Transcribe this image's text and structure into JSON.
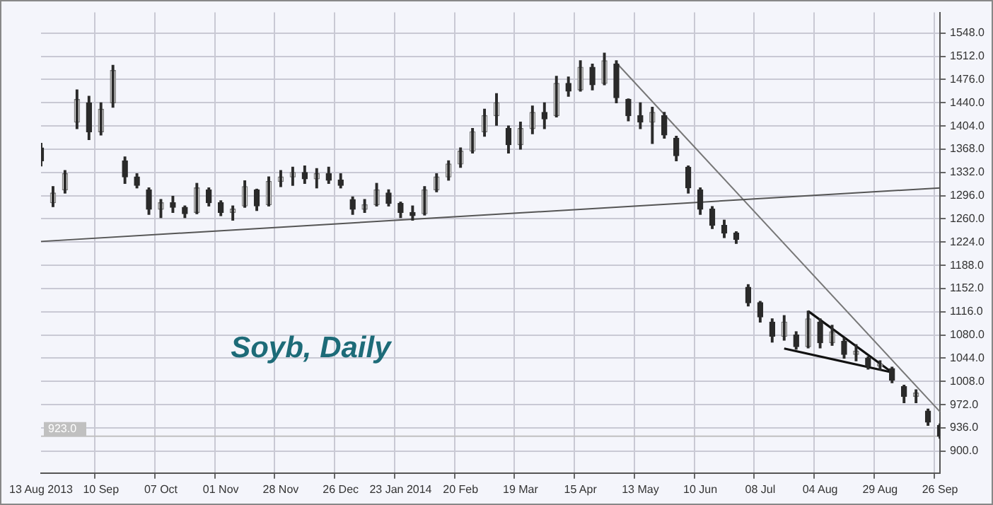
{
  "chart_data": {
    "type": "candlestick",
    "title": "Soyb, Daily",
    "categories": [
      "13 Aug 2013",
      null,
      null,
      null,
      null,
      "10 Sep",
      null,
      null,
      null,
      null,
      "07 Oct",
      null,
      null,
      null,
      null,
      "01 Nov",
      null,
      null,
      null,
      null,
      "28 Nov",
      null,
      null,
      null,
      null,
      "26 Dec",
      null,
      null,
      null,
      null,
      "23 Jan 2014",
      null,
      null,
      null,
      null,
      "20 Feb",
      null,
      null,
      null,
      null,
      "19 Mar",
      null,
      null,
      null,
      null,
      "15 Apr",
      null,
      null,
      null,
      null,
      "13 May",
      null,
      null,
      null,
      null,
      "10 Jun",
      null,
      null,
      null,
      null,
      "08 Jul",
      null,
      null,
      null,
      null,
      "04 Aug",
      null,
      null,
      null,
      null,
      "29 Aug",
      null,
      null,
      null,
      null,
      "26 Sep"
    ],
    "ohlc": [
      [
        1370,
        1377,
        1342,
        1350
      ],
      [
        1285,
        1310,
        1279,
        1300
      ],
      [
        1305,
        1335,
        1300,
        1330
      ],
      [
        1410,
        1460,
        1400,
        1445
      ],
      [
        1440,
        1450,
        1383,
        1395
      ],
      [
        1395,
        1440,
        1390,
        1430
      ],
      [
        1440,
        1498,
        1433,
        1490
      ],
      [
        1350,
        1356,
        1315,
        1325
      ],
      [
        1325,
        1330,
        1308,
        1312
      ],
      [
        1305,
        1308,
        1267,
        1275
      ],
      [
        1275,
        1290,
        1262,
        1285
      ],
      [
        1285,
        1295,
        1270,
        1278
      ],
      [
        1278,
        1280,
        1262,
        1268
      ],
      [
        1270,
        1315,
        1268,
        1308
      ],
      [
        1305,
        1308,
        1280,
        1285
      ],
      [
        1285,
        1288,
        1265,
        1270
      ],
      [
        1270,
        1280,
        1258,
        1275
      ],
      [
        1280,
        1319,
        1278,
        1310
      ],
      [
        1305,
        1306,
        1273,
        1280
      ],
      [
        1282,
        1325,
        1280,
        1318
      ],
      [
        1318,
        1335,
        1310,
        1325
      ],
      [
        1325,
        1340,
        1312,
        1332
      ],
      [
        1332,
        1342,
        1315,
        1322
      ],
      [
        1322,
        1338,
        1308,
        1330
      ],
      [
        1330,
        1340,
        1315,
        1320
      ],
      [
        1320,
        1330,
        1308,
        1312
      ],
      [
        1290,
        1294,
        1267,
        1275
      ],
      [
        1275,
        1290,
        1270,
        1282
      ],
      [
        1282,
        1315,
        1280,
        1305
      ],
      [
        1300,
        1305,
        1280,
        1284
      ],
      [
        1284,
        1286,
        1262,
        1270
      ],
      [
        1270,
        1280,
        1258,
        1265
      ],
      [
        1268,
        1310,
        1266,
        1305
      ],
      [
        1305,
        1330,
        1302,
        1325
      ],
      [
        1325,
        1350,
        1320,
        1345
      ],
      [
        1345,
        1370,
        1340,
        1365
      ],
      [
        1365,
        1400,
        1362,
        1395
      ],
      [
        1395,
        1430,
        1388,
        1420
      ],
      [
        1420,
        1454,
        1405,
        1440
      ],
      [
        1400,
        1404,
        1362,
        1375
      ],
      [
        1375,
        1410,
        1368,
        1400
      ],
      [
        1400,
        1435,
        1392,
        1425
      ],
      [
        1425,
        1440,
        1400,
        1415
      ],
      [
        1420,
        1481,
        1418,
        1470
      ],
      [
        1470,
        1480,
        1450,
        1458
      ],
      [
        1460,
        1505,
        1458,
        1495
      ],
      [
        1495,
        1500,
        1460,
        1468
      ],
      [
        1470,
        1517,
        1468,
        1505
      ],
      [
        1500,
        1505,
        1440,
        1448
      ],
      [
        1445,
        1446,
        1412,
        1420
      ],
      [
        1420,
        1440,
        1400,
        1410
      ],
      [
        1410,
        1433,
        1377,
        1425
      ],
      [
        1420,
        1425,
        1385,
        1390
      ],
      [
        1385,
        1388,
        1350,
        1358
      ],
      [
        1340,
        1342,
        1300,
        1308
      ],
      [
        1305,
        1308,
        1267,
        1275
      ],
      [
        1275,
        1279,
        1245,
        1250
      ],
      [
        1250,
        1258,
        1231,
        1238
      ],
      [
        1238,
        1240,
        1222,
        1228
      ],
      [
        1154,
        1158,
        1125,
        1130
      ],
      [
        1130,
        1132,
        1100,
        1108
      ],
      [
        1100,
        1105,
        1069,
        1078
      ],
      [
        1078,
        1110,
        1072,
        1100
      ],
      [
        1080,
        1085,
        1058,
        1062
      ],
      [
        1062,
        1117,
        1060,
        1105
      ],
      [
        1100,
        1105,
        1060,
        1068
      ],
      [
        1068,
        1095,
        1064,
        1085
      ],
      [
        1070,
        1075,
        1044,
        1050
      ],
      [
        1050,
        1065,
        1040,
        1055
      ],
      [
        1044,
        1046,
        1027,
        1032
      ],
      [
        1032,
        1040,
        1026,
        1035
      ],
      [
        1028,
        1030,
        1006,
        1010
      ],
      [
        1000,
        1002,
        975,
        985
      ],
      [
        985,
        995,
        975,
        990
      ],
      [
        962,
        965,
        940,
        945
      ],
      [
        940,
        942,
        920,
        923
      ]
    ],
    "series": [
      {
        "type": "line",
        "color": "#555555",
        "values": [
          1225,
          null,
          null,
          null,
          null,
          null,
          null,
          null,
          null,
          null,
          null,
          null,
          null,
          null,
          null,
          null,
          null,
          null,
          null,
          null,
          null,
          null,
          null,
          null,
          null,
          null,
          null,
          null,
          null,
          null,
          null,
          null,
          null,
          null,
          null,
          null,
          null,
          null,
          null,
          null,
          null,
          null,
          null,
          null,
          null,
          null,
          null,
          null,
          null,
          null,
          null,
          null,
          null,
          null,
          null,
          null,
          null,
          null,
          null,
          null,
          null,
          null,
          null,
          null,
          null,
          null,
          null,
          null,
          null,
          null,
          null,
          null,
          null,
          null,
          null,
          1308
        ]
      },
      {
        "type": "line",
        "color": "#777777",
        "values": [
          null,
          null,
          null,
          null,
          null,
          null,
          null,
          null,
          null,
          null,
          null,
          null,
          null,
          null,
          null,
          null,
          null,
          null,
          null,
          null,
          null,
          null,
          null,
          null,
          null,
          null,
          null,
          null,
          null,
          null,
          null,
          null,
          null,
          null,
          null,
          null,
          null,
          null,
          null,
          null,
          null,
          null,
          null,
          null,
          null,
          null,
          null,
          null,
          1502,
          null,
          null,
          null,
          null,
          null,
          null,
          null,
          null,
          null,
          null,
          null,
          null,
          null,
          null,
          null,
          null,
          null,
          null,
          null,
          null,
          null,
          null,
          null,
          null,
          null,
          null,
          961
        ]
      },
      {
        "type": "line",
        "color": "#111111",
        "values": [
          null,
          null,
          null,
          null,
          null,
          null,
          null,
          null,
          null,
          null,
          null,
          null,
          null,
          null,
          null,
          null,
          null,
          null,
          null,
          null,
          null,
          null,
          null,
          null,
          null,
          null,
          null,
          null,
          null,
          null,
          null,
          null,
          null,
          null,
          null,
          null,
          null,
          null,
          null,
          null,
          null,
          null,
          null,
          null,
          null,
          null,
          null,
          null,
          null,
          null,
          null,
          null,
          null,
          null,
          null,
          null,
          null,
          null,
          null,
          null,
          null,
          null,
          null,
          null,
          1117,
          null,
          null,
          null,
          null,
          null,
          null,
          1022,
          null,
          null,
          null,
          null
        ]
      },
      {
        "type": "line",
        "color": "#111111",
        "values": [
          null,
          null,
          null,
          null,
          null,
          null,
          null,
          null,
          null,
          null,
          null,
          null,
          null,
          null,
          null,
          null,
          null,
          null,
          null,
          null,
          null,
          null,
          null,
          null,
          null,
          null,
          null,
          null,
          null,
          null,
          null,
          null,
          null,
          null,
          null,
          null,
          null,
          null,
          null,
          null,
          null,
          null,
          null,
          null,
          null,
          null,
          null,
          null,
          null,
          null,
          null,
          null,
          null,
          null,
          null,
          null,
          null,
          null,
          null,
          null,
          null,
          null,
          1059,
          null,
          null,
          null,
          null,
          null,
          null,
          null,
          null,
          1022,
          null,
          null,
          null,
          null
        ]
      }
    ],
    "ylim": [
      866,
      1580
    ],
    "yticks": [
      {
        "value": 900,
        "label": "900.0"
      },
      {
        "value": 936,
        "label": "936.0"
      },
      {
        "value": 972,
        "label": "972.0"
      },
      {
        "value": 1008,
        "label": "1008.0"
      },
      {
        "value": 1044,
        "label": "1044.0"
      },
      {
        "value": 1080,
        "label": "1080.0"
      },
      {
        "value": 1116,
        "label": "1116.0"
      },
      {
        "value": 1152,
        "label": "1152.0"
      },
      {
        "value": 1188,
        "label": "1188.0"
      },
      {
        "value": 1224,
        "label": "1224.0"
      },
      {
        "value": 1260,
        "label": "1260.0"
      },
      {
        "value": 1296,
        "label": "1296.0"
      },
      {
        "value": 1332,
        "label": "1332.0"
      },
      {
        "value": 1368,
        "label": "1368.0"
      },
      {
        "value": 1404,
        "label": "1404.0"
      },
      {
        "value": 1440,
        "label": "1440.0"
      },
      {
        "value": 1476,
        "label": "1476.0"
      },
      {
        "value": 1512,
        "label": "1512.0"
      },
      {
        "value": 1548,
        "label": "1548.0"
      }
    ],
    "ref_lines": [
      {
        "axis": "y",
        "value": 923,
        "label": "923.0",
        "color": "#c0c0c0"
      }
    ],
    "grid": true,
    "legend": false
  }
}
